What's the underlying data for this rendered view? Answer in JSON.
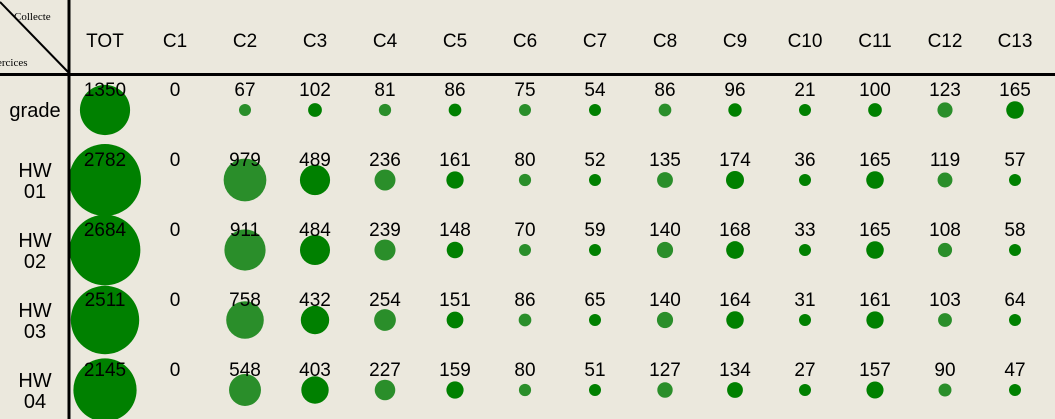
{
  "chart_data": {
    "type": "bubble-table",
    "corner_top": "Collecte",
    "corner_bottom": "ercices",
    "columns": [
      "TOT",
      "C1",
      "C2",
      "C3",
      "C4",
      "C5",
      "C6",
      "C7",
      "C8",
      "C9",
      "C10",
      "C11",
      "C12",
      "C13"
    ],
    "rows": [
      {
        "label": [
          "grade"
        ],
        "values": [
          1350,
          0,
          67,
          102,
          81,
          86,
          75,
          54,
          86,
          96,
          21,
          100,
          123,
          165
        ]
      },
      {
        "label": [
          "HW",
          "01"
        ],
        "values": [
          2782,
          0,
          979,
          489,
          236,
          161,
          80,
          52,
          135,
          174,
          36,
          165,
          119,
          57
        ]
      },
      {
        "label": [
          "HW",
          "02"
        ],
        "values": [
          2684,
          0,
          911,
          484,
          239,
          148,
          70,
          59,
          140,
          168,
          33,
          165,
          108,
          58
        ]
      },
      {
        "label": [
          "HW",
          "03"
        ],
        "values": [
          2511,
          0,
          758,
          432,
          254,
          151,
          86,
          65,
          140,
          164,
          31,
          161,
          103,
          64
        ]
      },
      {
        "label": [
          "HW",
          "04"
        ],
        "values": [
          2145,
          0,
          548,
          403,
          227,
          159,
          80,
          51,
          127,
          134,
          27,
          157,
          90,
          47
        ]
      }
    ],
    "colors": {
      "dark_green": "#008000",
      "light_green": "#2a8e2a",
      "background": "#ebe8dd",
      "grid": "#000000"
    }
  }
}
